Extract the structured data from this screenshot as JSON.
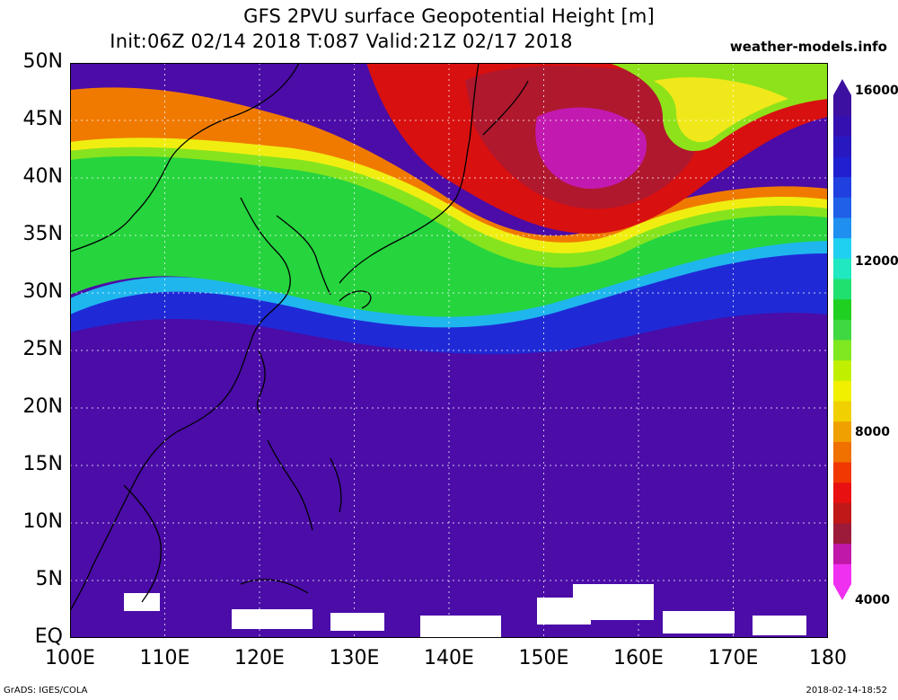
{
  "header": {
    "title_line1": "GFS 2PVU surface Geopotential Height [m]",
    "title_line2": "Init:06Z 02/14 2018 T:087 Valid:21Z 02/17 2018",
    "site": "weather-models.info"
  },
  "map": {
    "region": "Western North Pacific / East Asia",
    "lat_labels": [
      "50N",
      "45N",
      "40N",
      "35N",
      "30N",
      "25N",
      "20N",
      "15N",
      "10N",
      "5N",
      "EQ"
    ],
    "lon_labels": [
      "100E",
      "110E",
      "120E",
      "130E",
      "140E",
      "150E",
      "160E",
      "170E",
      "180"
    ],
    "gridlines": true,
    "colors": {
      "purple": "#4b0ca8",
      "deep_blue": "#1f2ad6",
      "blue": "#1e6ef0",
      "cyan": "#16c8f0",
      "green": "#20d040",
      "light_green": "#7ee020",
      "yellow": "#f0f000",
      "orange": "#f09000",
      "orange_red": "#f05000",
      "red": "#e01010",
      "dark_red": "#a01818",
      "magenta": "#d020b0"
    }
  },
  "colorbar": {
    "labels": [
      "16000",
      "12000",
      "8000",
      "4000"
    ],
    "min": 4000,
    "max": 16000,
    "colors": [
      "#f030f0",
      "#c018a8",
      "#9c1a3a",
      "#c01818",
      "#e81010",
      "#f03800",
      "#f07000",
      "#f0a000",
      "#f0d000",
      "#f0f000",
      "#c0f000",
      "#80e820",
      "#40d840",
      "#20d020",
      "#20e070",
      "#20e8c0",
      "#20d0f0",
      "#2090f0",
      "#2060e8",
      "#2040e0",
      "#2020d0",
      "#2818c0",
      "#3410b0",
      "#3c10a0"
    ]
  },
  "footer": {
    "left": "GrADS: IGES/COLA",
    "right": "2018-02-14-18:52"
  }
}
